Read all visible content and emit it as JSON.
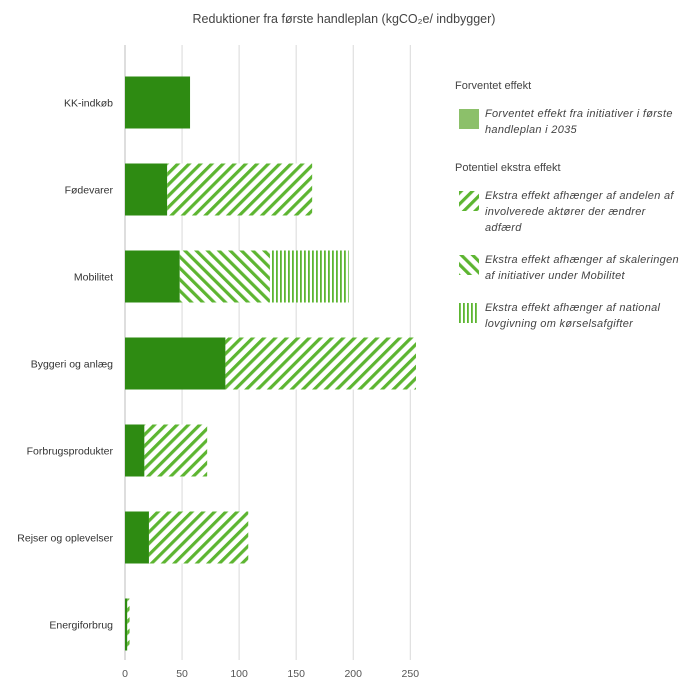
{
  "chart_data": {
    "type": "bar",
    "orientation": "horizontal",
    "stacked": true,
    "title": "Reduktioner fra første handleplan (kgCO₂e/ indbygger)",
    "categories": [
      "KK-indkøb",
      "Fødevarer",
      "Mobilitet",
      "Byggeri og anlæg",
      "Forbrugsprodukter",
      "Rejser og oplevelser",
      "Energiforbrug"
    ],
    "series": [
      {
        "name": "Forventet effekt fra initiativer i første handleplan i 2035",
        "pattern": "solid",
        "color": "#2e8b12",
        "values": [
          57,
          37,
          48,
          88,
          17,
          21,
          2
        ]
      },
      {
        "name": "Ekstra effekt afhænger af andelen af involverede aktører der ændrer adfærd",
        "pattern": "diag-up",
        "color": "#5db531",
        "values": [
          0,
          127,
          0,
          167,
          55,
          87,
          2
        ]
      },
      {
        "name": "Ekstra effekt afhænger af skaleringen af initiativer under Mobilitet",
        "pattern": "diag-down",
        "color": "#5db531",
        "values": [
          0,
          0,
          79,
          0,
          0,
          0,
          0
        ]
      },
      {
        "name": "Ekstra effekt afhænger af national lovgivning om kørselsafgifter",
        "pattern": "vertical",
        "color": "#5db531",
        "values": [
          0,
          0,
          69,
          0,
          0,
          0,
          0
        ]
      }
    ],
    "xlim": [
      0,
      260
    ],
    "xticks": [
      0,
      50,
      100,
      150,
      200,
      250
    ],
    "grid": true,
    "legend_position": "right"
  },
  "legend": {
    "group1_title": "Forventet effekt",
    "group2_title": "Potentiel ekstra effekt"
  }
}
